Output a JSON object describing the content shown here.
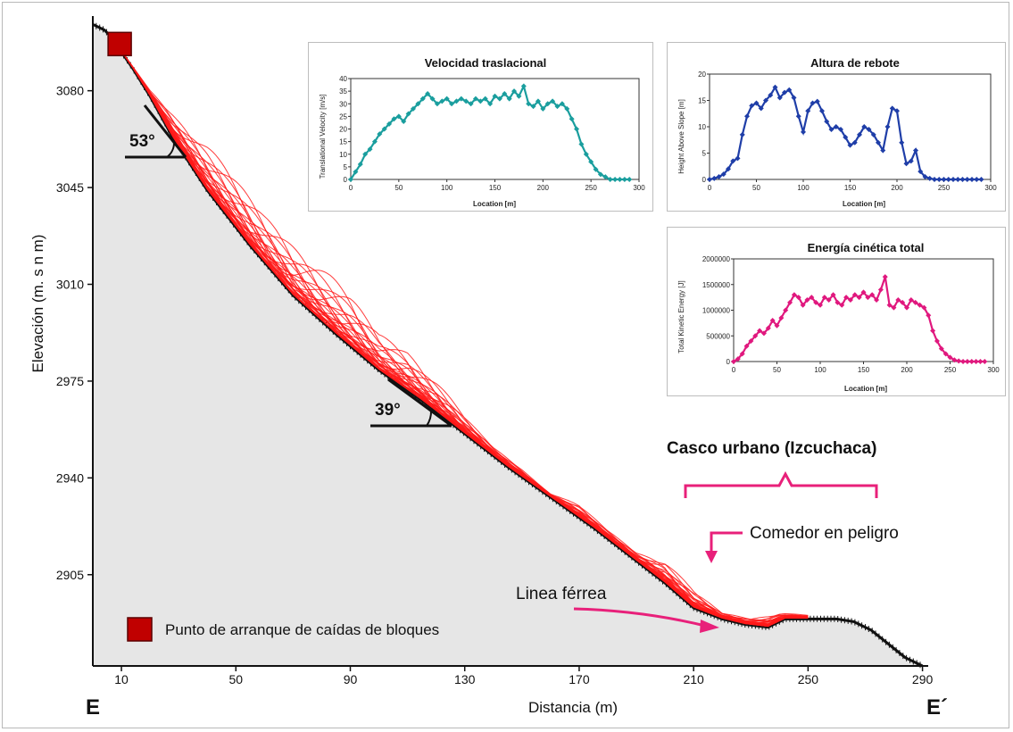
{
  "chart_data": [
    {
      "type": "area",
      "title": "",
      "xlabel": "Distancia (m)",
      "ylabel": "Elevación (m. s n m)",
      "xlim": [
        0,
        292
      ],
      "ylim": [
        2872,
        3107
      ],
      "x_ticks": [
        10,
        50,
        90,
        130,
        170,
        210,
        250,
        290
      ],
      "y_ticks": [
        2905,
        2940,
        2975,
        3010,
        3045,
        3080
      ],
      "section_start_label": "E",
      "section_end_label": "E´",
      "profile": {
        "x": [
          0,
          4,
          8,
          10,
          14,
          20,
          28,
          40,
          55,
          70,
          85,
          100,
          115,
          130,
          145,
          160,
          175,
          190,
          200,
          210,
          220,
          228,
          236,
          242,
          248,
          254,
          260,
          266,
          272,
          278,
          284,
          290
        ],
        "y": [
          3104,
          3102,
          3098,
          3094,
          3088,
          3078,
          3063,
          3044,
          3024,
          3006,
          2992,
          2979,
          2968,
          2956,
          2944,
          2933,
          2922,
          2910,
          2902,
          2893,
          2889,
          2887,
          2886,
          2889,
          2889,
          2889,
          2889,
          2888,
          2885,
          2880,
          2875,
          2872
        ]
      },
      "trajectory_envelope": {
        "x": [
          10,
          20,
          30,
          40,
          50,
          60,
          70,
          80,
          90,
          100,
          110,
          120,
          130,
          140,
          150,
          160,
          170,
          180,
          190,
          200,
          210,
          220,
          230,
          240,
          250
        ],
        "y_max": [
          3094,
          3080,
          3070,
          3060,
          3048,
          3036,
          3026,
          3016,
          3006,
          2993,
          2987,
          2975,
          2962,
          2951,
          2943,
          2934,
          2930,
          2921,
          2913,
          2910,
          2899,
          2891,
          2889,
          2891,
          2890
        ]
      },
      "annotations": {
        "slope_upper": "53°",
        "slope_lower": "39°",
        "urban_area": "Casco urbano (Izcuchaca)",
        "dining_hall": "Comedor en peligro",
        "railway": "Linea férrea"
      },
      "legend": {
        "label": "Punto de arranque de caídas de bloques",
        "color": "#c00000",
        "placement": "bottom-left"
      },
      "start_point": {
        "x": 10,
        "y": 3094
      },
      "colors": {
        "profile_fill": "#e6e6e6",
        "profile_edge": "#111111",
        "trajectories": "#ff1a1a",
        "annotation": "#e8207a"
      }
    },
    {
      "type": "line",
      "title": "Velocidad traslacional",
      "xlabel": "Location [m]",
      "ylabel": "Translational Velocity [m/s]",
      "xlim": [
        0,
        300
      ],
      "ylim": [
        0,
        40
      ],
      "x_ticks": [
        0,
        50,
        100,
        150,
        200,
        250,
        300
      ],
      "y_ticks": [
        0,
        5,
        10,
        15,
        20,
        25,
        30,
        35,
        40
      ],
      "color": "#1a9e9e",
      "x": [
        0,
        5,
        10,
        15,
        20,
        25,
        30,
        35,
        40,
        45,
        50,
        55,
        60,
        65,
        70,
        75,
        80,
        85,
        90,
        95,
        100,
        105,
        110,
        115,
        120,
        125,
        130,
        135,
        140,
        145,
        150,
        155,
        160,
        165,
        170,
        175,
        180,
        185,
        190,
        195,
        200,
        205,
        210,
        215,
        220,
        225,
        230,
        235,
        240,
        245,
        250,
        255,
        260,
        265,
        270,
        275,
        280,
        285,
        290
      ],
      "y": [
        0,
        3,
        6,
        10,
        12,
        15,
        18,
        20,
        22,
        24,
        25,
        23,
        26,
        28,
        30,
        32,
        34,
        32,
        30,
        31,
        32,
        30,
        31,
        32,
        31,
        30,
        32,
        31,
        32,
        30,
        33,
        32,
        34,
        32,
        35,
        33,
        37,
        30,
        29,
        31,
        28,
        30,
        31,
        29,
        30,
        28,
        24,
        20,
        14,
        10,
        7,
        4,
        2,
        1,
        0,
        0,
        0,
        0,
        0
      ]
    },
    {
      "type": "line",
      "title": "Altura de rebote",
      "xlabel": "Location [m]",
      "ylabel": "Height Above Slope [m]",
      "xlim": [
        0,
        300
      ],
      "ylim": [
        0,
        20
      ],
      "x_ticks": [
        0,
        50,
        100,
        150,
        200,
        250,
        300
      ],
      "y_ticks": [
        0,
        5,
        10,
        15,
        20
      ],
      "color": "#1f3ea8",
      "x": [
        0,
        5,
        10,
        15,
        20,
        25,
        30,
        35,
        40,
        45,
        50,
        55,
        60,
        65,
        70,
        75,
        80,
        85,
        90,
        95,
        100,
        105,
        110,
        115,
        120,
        125,
        130,
        135,
        140,
        145,
        150,
        155,
        160,
        165,
        170,
        175,
        180,
        185,
        190,
        195,
        200,
        205,
        210,
        215,
        220,
        225,
        230,
        235,
        240,
        245,
        250,
        255,
        260,
        265,
        270,
        275,
        280,
        285,
        290
      ],
      "y": [
        0,
        0.2,
        0.5,
        1,
        2,
        3.5,
        4,
        8.5,
        12,
        14,
        14.5,
        13.5,
        15,
        16,
        17.5,
        15.5,
        16.5,
        17,
        15.5,
        12,
        9,
        13,
        14.5,
        14.8,
        13,
        11,
        9.5,
        10,
        9.5,
        8,
        6.5,
        7,
        8.5,
        10,
        9.5,
        8.5,
        7,
        5.5,
        10,
        13.5,
        13,
        7,
        3,
        3.5,
        5.5,
        1.5,
        0.5,
        0.2,
        0,
        0,
        0,
        0,
        0,
        0,
        0,
        0,
        0,
        0,
        0
      ]
    },
    {
      "type": "line",
      "title": "Energía cinética total",
      "xlabel": "Location [m]",
      "ylabel": "Total Kinetic Energy [J]",
      "xlim": [
        0,
        300
      ],
      "ylim": [
        0,
        2000000
      ],
      "x_ticks": [
        0,
        50,
        100,
        150,
        200,
        250,
        300
      ],
      "y_ticks": [
        0,
        500000,
        1000000,
        1500000,
        2000000
      ],
      "color": "#e0187e",
      "x": [
        0,
        5,
        10,
        15,
        20,
        25,
        30,
        35,
        40,
        45,
        50,
        55,
        60,
        65,
        70,
        75,
        80,
        85,
        90,
        95,
        100,
        105,
        110,
        115,
        120,
        125,
        130,
        135,
        140,
        145,
        150,
        155,
        160,
        165,
        170,
        175,
        180,
        185,
        190,
        195,
        200,
        205,
        210,
        215,
        220,
        225,
        230,
        235,
        240,
        245,
        250,
        255,
        260,
        265,
        270,
        275,
        280,
        285,
        290
      ],
      "y": [
        0,
        50000,
        150000,
        300000,
        400000,
        500000,
        600000,
        550000,
        650000,
        800000,
        700000,
        850000,
        1000000,
        1150000,
        1300000,
        1250000,
        1100000,
        1200000,
        1250000,
        1150000,
        1100000,
        1250000,
        1200000,
        1300000,
        1150000,
        1100000,
        1250000,
        1200000,
        1300000,
        1250000,
        1350000,
        1250000,
        1300000,
        1200000,
        1400000,
        1650000,
        1100000,
        1050000,
        1200000,
        1150000,
        1050000,
        1200000,
        1150000,
        1100000,
        1050000,
        900000,
        600000,
        400000,
        250000,
        150000,
        80000,
        30000,
        10000,
        0,
        0,
        0,
        0,
        0,
        0
      ]
    }
  ]
}
